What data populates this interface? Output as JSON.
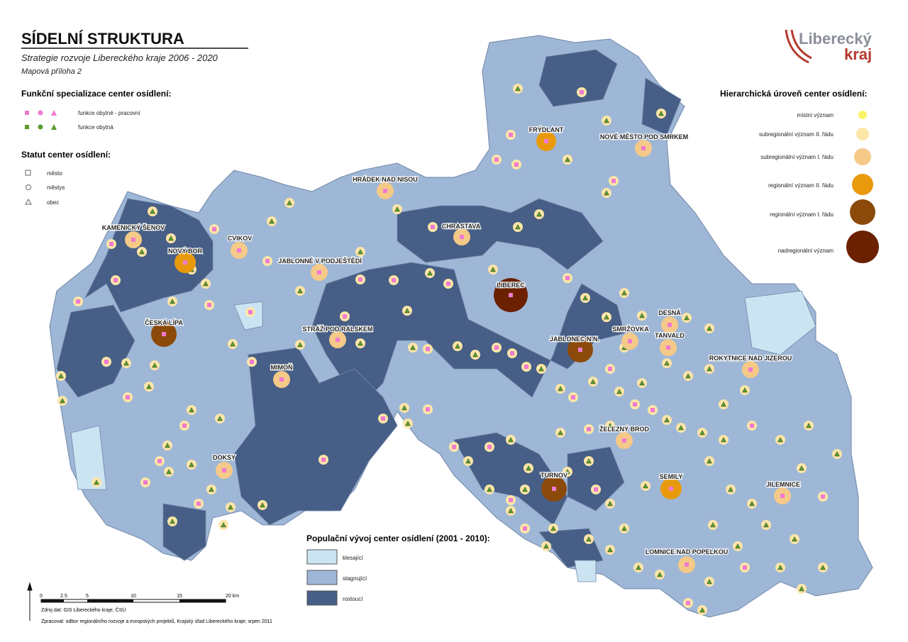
{
  "header": {
    "title": "SÍDELNÍ STRUKTURA",
    "subtitle": "Strategie rozvoje Libereckého kraje 2006 - 2020",
    "annex": "Mapová příloha 2"
  },
  "logo": {
    "line1": "Liberecký",
    "line2": "kraj"
  },
  "legend_function": {
    "title": "Funkční specializace center osídlení:",
    "items": [
      "funkce obytné - pracovní",
      "funkce obytná"
    ]
  },
  "legend_status": {
    "title": "Statut center osídlení:",
    "items": [
      "město",
      "městys",
      "obec"
    ]
  },
  "legend_hierarchy": {
    "title": "Hierarchická úroveň center osídlení:",
    "items": [
      "místní význam",
      "subregionální význam II. řádu",
      "subregionální význam I. řádu",
      "regionální význam II. řádu",
      "regionální význam I. řádu",
      "nadregionální význam"
    ]
  },
  "legend_population": {
    "title": "Populační vývoj center osídlení (2001 - 2010):",
    "items": [
      "klesající",
      "stagnující",
      "rostoucí"
    ]
  },
  "scale": {
    "labels": [
      "0",
      "2.5",
      "5",
      "10",
      "15",
      "20 km"
    ]
  },
  "sources": [
    "Zdroj dat: GIS Libereckého kraje, ČSÚ",
    "Zpracoval: odbor regionálního rozvoje a evropských projektů, Krajský úřad Libereckého kraje; srpen 2011"
  ],
  "cities": [
    "FRÝDLANT",
    "NOVÉ MĚSTO POD SMRKEM",
    "HRÁDEK NAD NISOU",
    "KAMENICKÝ ŠENOV",
    "CHRASTAVA",
    "CVIKOV",
    "NOVÝ BOR",
    "JABLONNÉ V PODJEŠTĚDÍ",
    "LIBEREC",
    "ČESKÁ LÍPA",
    "DESNÁ",
    "SMRŽOVKA",
    "TANVALD",
    "JABLONEC N.N.",
    "STRÁŽ POD RALSKEM",
    "ROKYTNICE NAD JIZEROU",
    "MIMOŇ",
    "ŽELEZNÝ BROD",
    "DOKSY",
    "TURNOV",
    "SEMILY",
    "JILEMNICE",
    "LOMNICE NAD POPELKOU"
  ]
}
